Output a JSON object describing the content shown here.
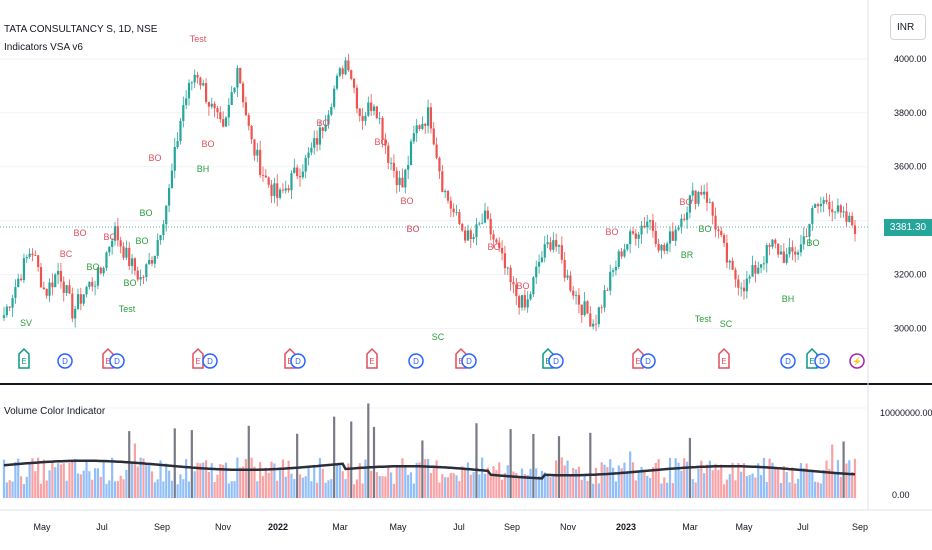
{
  "header": {
    "symbol": "TATA CONSULTANCY S, 1D, NSE",
    "indicator": "Indicators VSA v6",
    "volume_indicator": "Volume Color Indicator",
    "currency": "INR"
  },
  "last_price": "3381.30",
  "price_axis": [
    "4000.00",
    "3800.00",
    "3600.00",
    "3200.00",
    "3000.00"
  ],
  "volume_axis": [
    "10000000.00",
    "0.00"
  ],
  "time_axis": [
    "May",
    "Jul",
    "Sep",
    "Nov",
    "2022",
    "Mar",
    "May",
    "Jul",
    "Sep",
    "Nov",
    "2023",
    "Mar",
    "May",
    "Jul",
    "Sep"
  ],
  "colors": {
    "up": "#26a69a",
    "down": "#ef5350",
    "green_label": "#2e9c3f",
    "red_label": "#e04f5f",
    "blue_event": "#2962ff",
    "purple_event": "#9c27b0",
    "teal_event": "#089981"
  },
  "chart_data": {
    "type": "candlestick",
    "price_ylim": [
      2950,
      4070
    ],
    "close_path": [
      [
        "May",
        3050
      ],
      [
        "",
        3180
      ],
      [
        "",
        3300
      ],
      [
        "",
        3130
      ],
      [
        "",
        3220
      ],
      [
        "",
        3060
      ],
      [
        "",
        3150
      ],
      [
        "Jul",
        3200
      ],
      [
        "",
        3370
      ],
      [
        "",
        3260
      ],
      [
        "",
        3180
      ],
      [
        "",
        3290
      ],
      [
        "Sep",
        3500
      ],
      [
        "",
        3820
      ],
      [
        "",
        3960
      ],
      [
        "",
        3830
      ],
      [
        "",
        3720
      ],
      [
        "",
        3980
      ],
      [
        "",
        3690
      ],
      [
        "Nov",
        3560
      ],
      [
        "",
        3480
      ],
      [
        "",
        3560
      ],
      [
        "",
        3620
      ],
      [
        "2022",
        3720
      ],
      [
        "",
        3880
      ],
      [
        "",
        4010
      ],
      [
        "",
        3780
      ],
      [
        "",
        3850
      ],
      [
        "Mar",
        3640
      ],
      [
        "",
        3520
      ],
      [
        "",
        3740
      ],
      [
        "",
        3800
      ],
      [
        "May",
        3520
      ],
      [
        "",
        3400
      ],
      [
        "",
        3320
      ],
      [
        "",
        3410
      ],
      [
        "",
        3290
      ],
      [
        "Jul",
        3150
      ],
      [
        "",
        3070
      ],
      [
        "",
        3250
      ],
      [
        "",
        3340
      ],
      [
        "",
        3190
      ],
      [
        "Sep",
        3090
      ],
      [
        "",
        3020
      ],
      [
        "",
        3160
      ],
      [
        "Nov",
        3290
      ],
      [
        "",
        3360
      ],
      [
        "",
        3410
      ],
      [
        "",
        3280
      ],
      [
        "2023",
        3380
      ],
      [
        "",
        3480
      ],
      [
        "",
        3520
      ],
      [
        "Mar",
        3360
      ],
      [
        "",
        3200
      ],
      [
        "",
        3160
      ],
      [
        "",
        3240
      ],
      [
        "May",
        3310
      ],
      [
        "",
        3260
      ],
      [
        "",
        3300
      ],
      [
        "Jul",
        3440
      ],
      [
        "",
        3480
      ],
      [
        "",
        3410
      ],
      [
        "Sep",
        3380
      ]
    ],
    "volume_ylim": [
      0,
      11000000
    ],
    "volume_avg_level": 3000000,
    "signals": [
      {
        "text": "SV",
        "type": "green"
      },
      {
        "text": "BC",
        "type": "red"
      },
      {
        "text": "BO",
        "type": "green"
      },
      {
        "text": "BO",
        "type": "red"
      },
      {
        "text": "BO",
        "type": "red"
      },
      {
        "text": "Test",
        "type": "green"
      },
      {
        "text": "BO",
        "type": "green"
      },
      {
        "text": "BO",
        "type": "green"
      },
      {
        "text": "BO",
        "type": "green"
      },
      {
        "text": "Test",
        "type": "red"
      },
      {
        "text": "BO",
        "type": "red"
      },
      {
        "text": "BH",
        "type": "green"
      },
      {
        "text": "BO",
        "type": "red"
      },
      {
        "text": "BO",
        "type": "red"
      },
      {
        "text": "BO",
        "type": "red"
      },
      {
        "text": "SC",
        "type": "green"
      },
      {
        "text": "BO",
        "type": "red"
      },
      {
        "text": "BO",
        "type": "red"
      },
      {
        "text": "BO",
        "type": "red"
      },
      {
        "text": "BO",
        "type": "red"
      },
      {
        "text": "BO",
        "type": "red"
      },
      {
        "text": "BO",
        "type": "red"
      },
      {
        "text": "BR",
        "type": "green"
      },
      {
        "text": "Test",
        "type": "green"
      },
      {
        "text": "SC",
        "type": "green"
      },
      {
        "text": "BH",
        "type": "green"
      },
      {
        "text": "BO",
        "type": "green"
      },
      {
        "text": "BO",
        "type": "green"
      }
    ],
    "events": [
      "E",
      "D",
      "E",
      "D",
      "E",
      "D",
      "E",
      "D",
      "E",
      "D",
      "E",
      "D",
      "E",
      "D",
      "E",
      "D",
      "E",
      "D",
      "E",
      "D",
      "E",
      "D",
      "E",
      "D"
    ]
  }
}
